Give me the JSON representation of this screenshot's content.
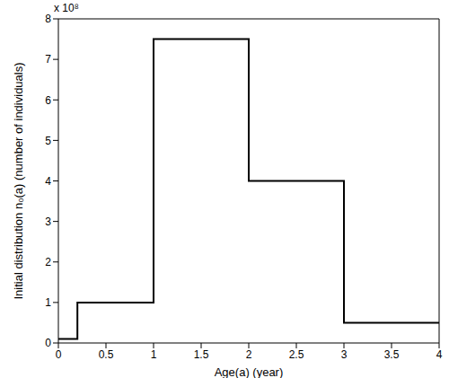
{
  "chart_data": {
    "type": "step",
    "xlabel": "Age(a) (year)",
    "ylabel": "Initial distribution n₀(a) (number of individuals)",
    "annotations": [
      "x 10⁸"
    ],
    "x": [
      0,
      0.2,
      1,
      2,
      3,
      4
    ],
    "series": [
      {
        "name": "n₀(a)",
        "color": "#000000",
        "values": [
          0.1,
          1,
          7.5,
          4,
          0.5,
          0.5
        ]
      }
    ],
    "xlim": [
      0,
      4
    ],
    "xticks": [
      0,
      0.5,
      1,
      1.5,
      2,
      2.5,
      3,
      3.5,
      4
    ],
    "ylim": [
      0,
      8
    ],
    "yticks": [
      0,
      1,
      2,
      3,
      4,
      5,
      6,
      7,
      8
    ],
    "line_style": "solid",
    "grid": false
  }
}
